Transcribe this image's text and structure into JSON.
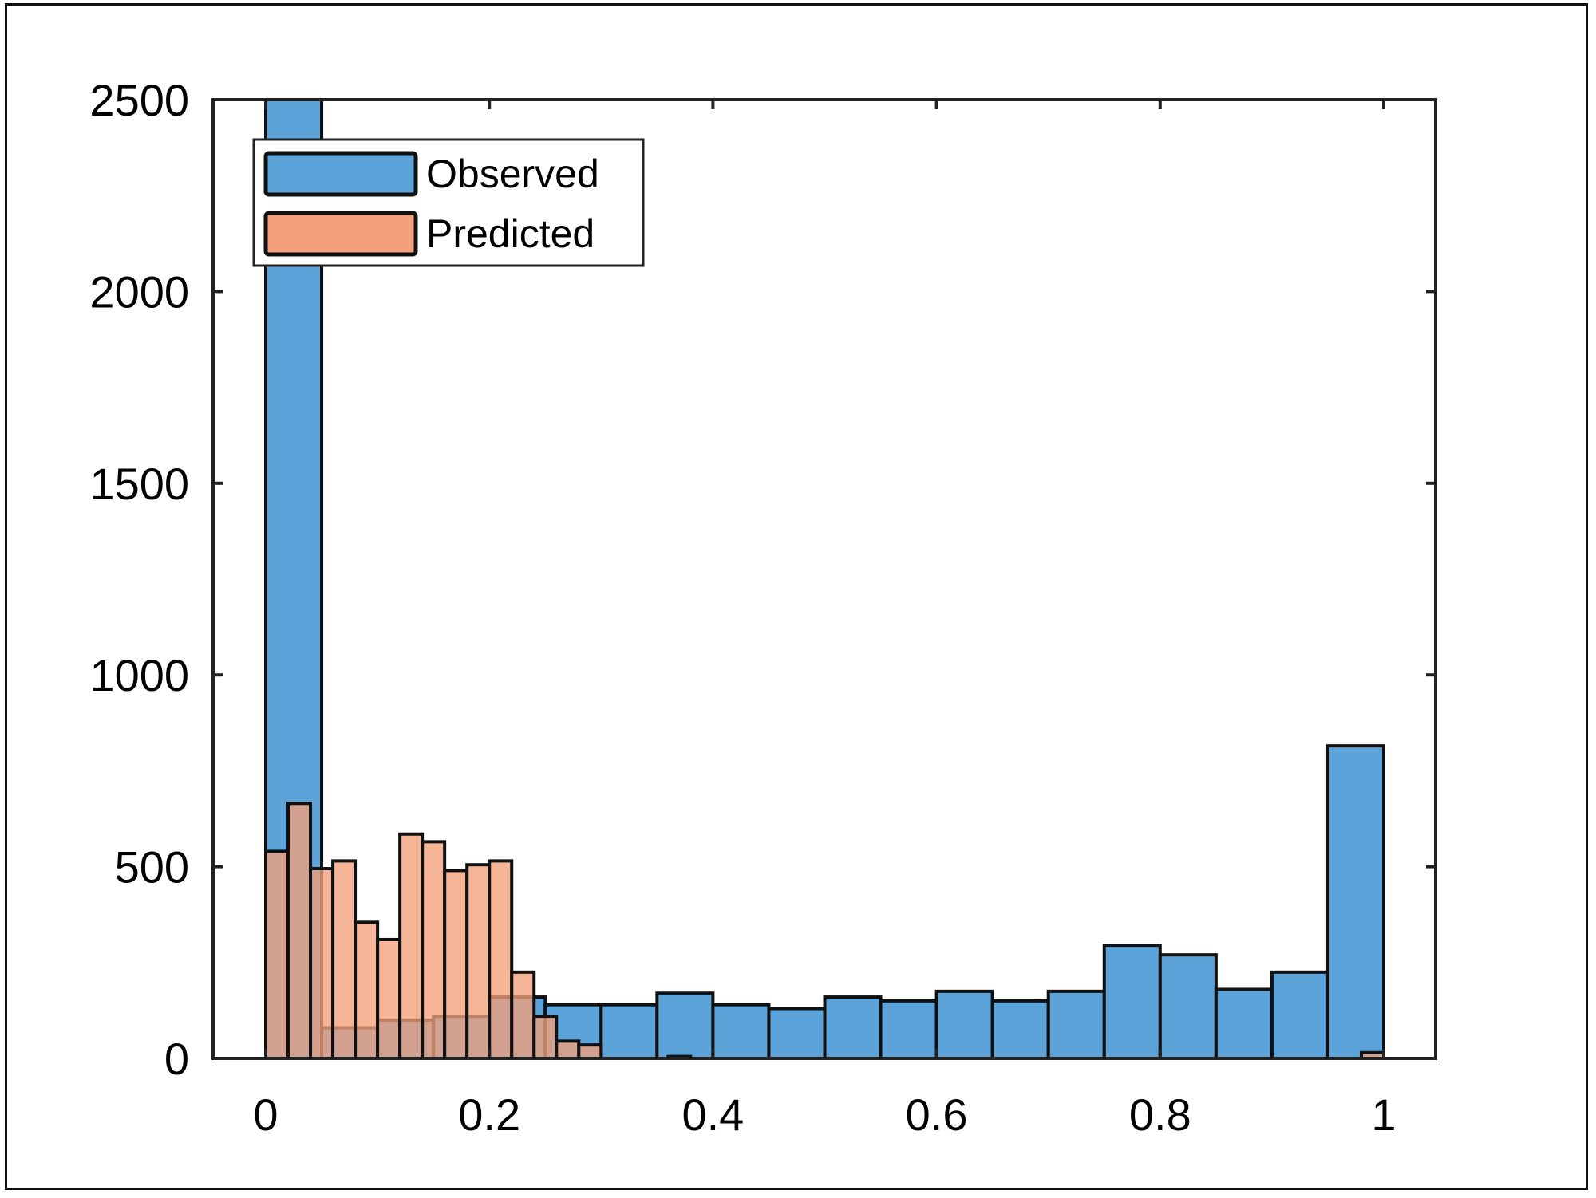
{
  "chart_data": {
    "type": "bar",
    "subtype": "overlaid-histogram",
    "title": "",
    "xlabel": "",
    "ylabel": "",
    "xlim": [
      -0.05,
      1.05
    ],
    "ylim": [
      0,
      2500
    ],
    "xticks": [
      0,
      0.2,
      0.4,
      0.6,
      0.8,
      1
    ],
    "xtick_labels": [
      "0",
      "0.2",
      "0.4",
      "0.6",
      "0.8",
      "1"
    ],
    "yticks": [
      0,
      500,
      1000,
      1500,
      2000,
      2500
    ],
    "ytick_labels": [
      "0",
      "500",
      "1000",
      "1500",
      "2000",
      "2500"
    ],
    "grid": false,
    "legend_position": "top-left",
    "series": [
      {
        "name": "Observed",
        "color": "#5BA3D9",
        "bin_width": 0.05,
        "bin_start": 0,
        "values": [
          2500,
          80,
          100,
          110,
          160,
          140,
          140,
          170,
          140,
          130,
          160,
          150,
          175,
          150,
          175,
          295,
          270,
          180,
          225,
          815
        ]
      },
      {
        "name": "Predicted",
        "color": "#F4A07A",
        "bin_width": 0.02,
        "bin_start": 0,
        "values": [
          540,
          665,
          495,
          515,
          355,
          310,
          585,
          565,
          490,
          505,
          515,
          225,
          110,
          45,
          35,
          0,
          0,
          0,
          5,
          0,
          0,
          0,
          0,
          0,
          0,
          0,
          0,
          0,
          0,
          0,
          0,
          0,
          0,
          0,
          0,
          0,
          0,
          0,
          0,
          0,
          0,
          0,
          0,
          0,
          0,
          0,
          0,
          0,
          0,
          15
        ]
      }
    ]
  }
}
